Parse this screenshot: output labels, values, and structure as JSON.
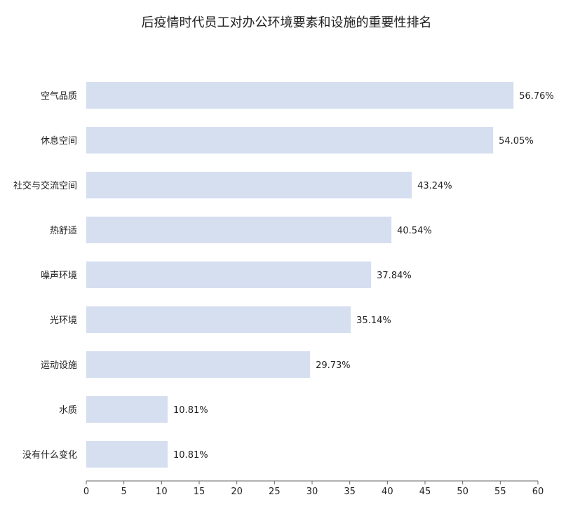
{
  "chart_data": {
    "type": "bar",
    "orientation": "horizontal",
    "title": "后疫情时代员工对办公环境要素和设施的重要性排名",
    "categories": [
      "空气品质",
      "休息空间",
      "社交与交流空间",
      "热舒适",
      "噪声环境",
      "光环境",
      "运动设施",
      "水质",
      "没有什么变化"
    ],
    "values": [
      56.76,
      54.05,
      43.24,
      40.54,
      37.84,
      35.14,
      29.73,
      10.81,
      10.81
    ],
    "data_labels": [
      "56.76%",
      "54.05%",
      "43.24%",
      "40.54%",
      "37.84%",
      "35.14%",
      "29.73%",
      "10.81%",
      "10.81%"
    ],
    "xlim": [
      0,
      60
    ],
    "xticks": [
      0,
      5,
      10,
      15,
      20,
      25,
      30,
      35,
      40,
      45,
      50,
      55,
      60
    ],
    "xlabel": "",
    "ylabel": "",
    "grid": false,
    "legend": "none",
    "bar_color": "#d6dff0",
    "text_color": "#222222",
    "axis_color": "#666666"
  }
}
